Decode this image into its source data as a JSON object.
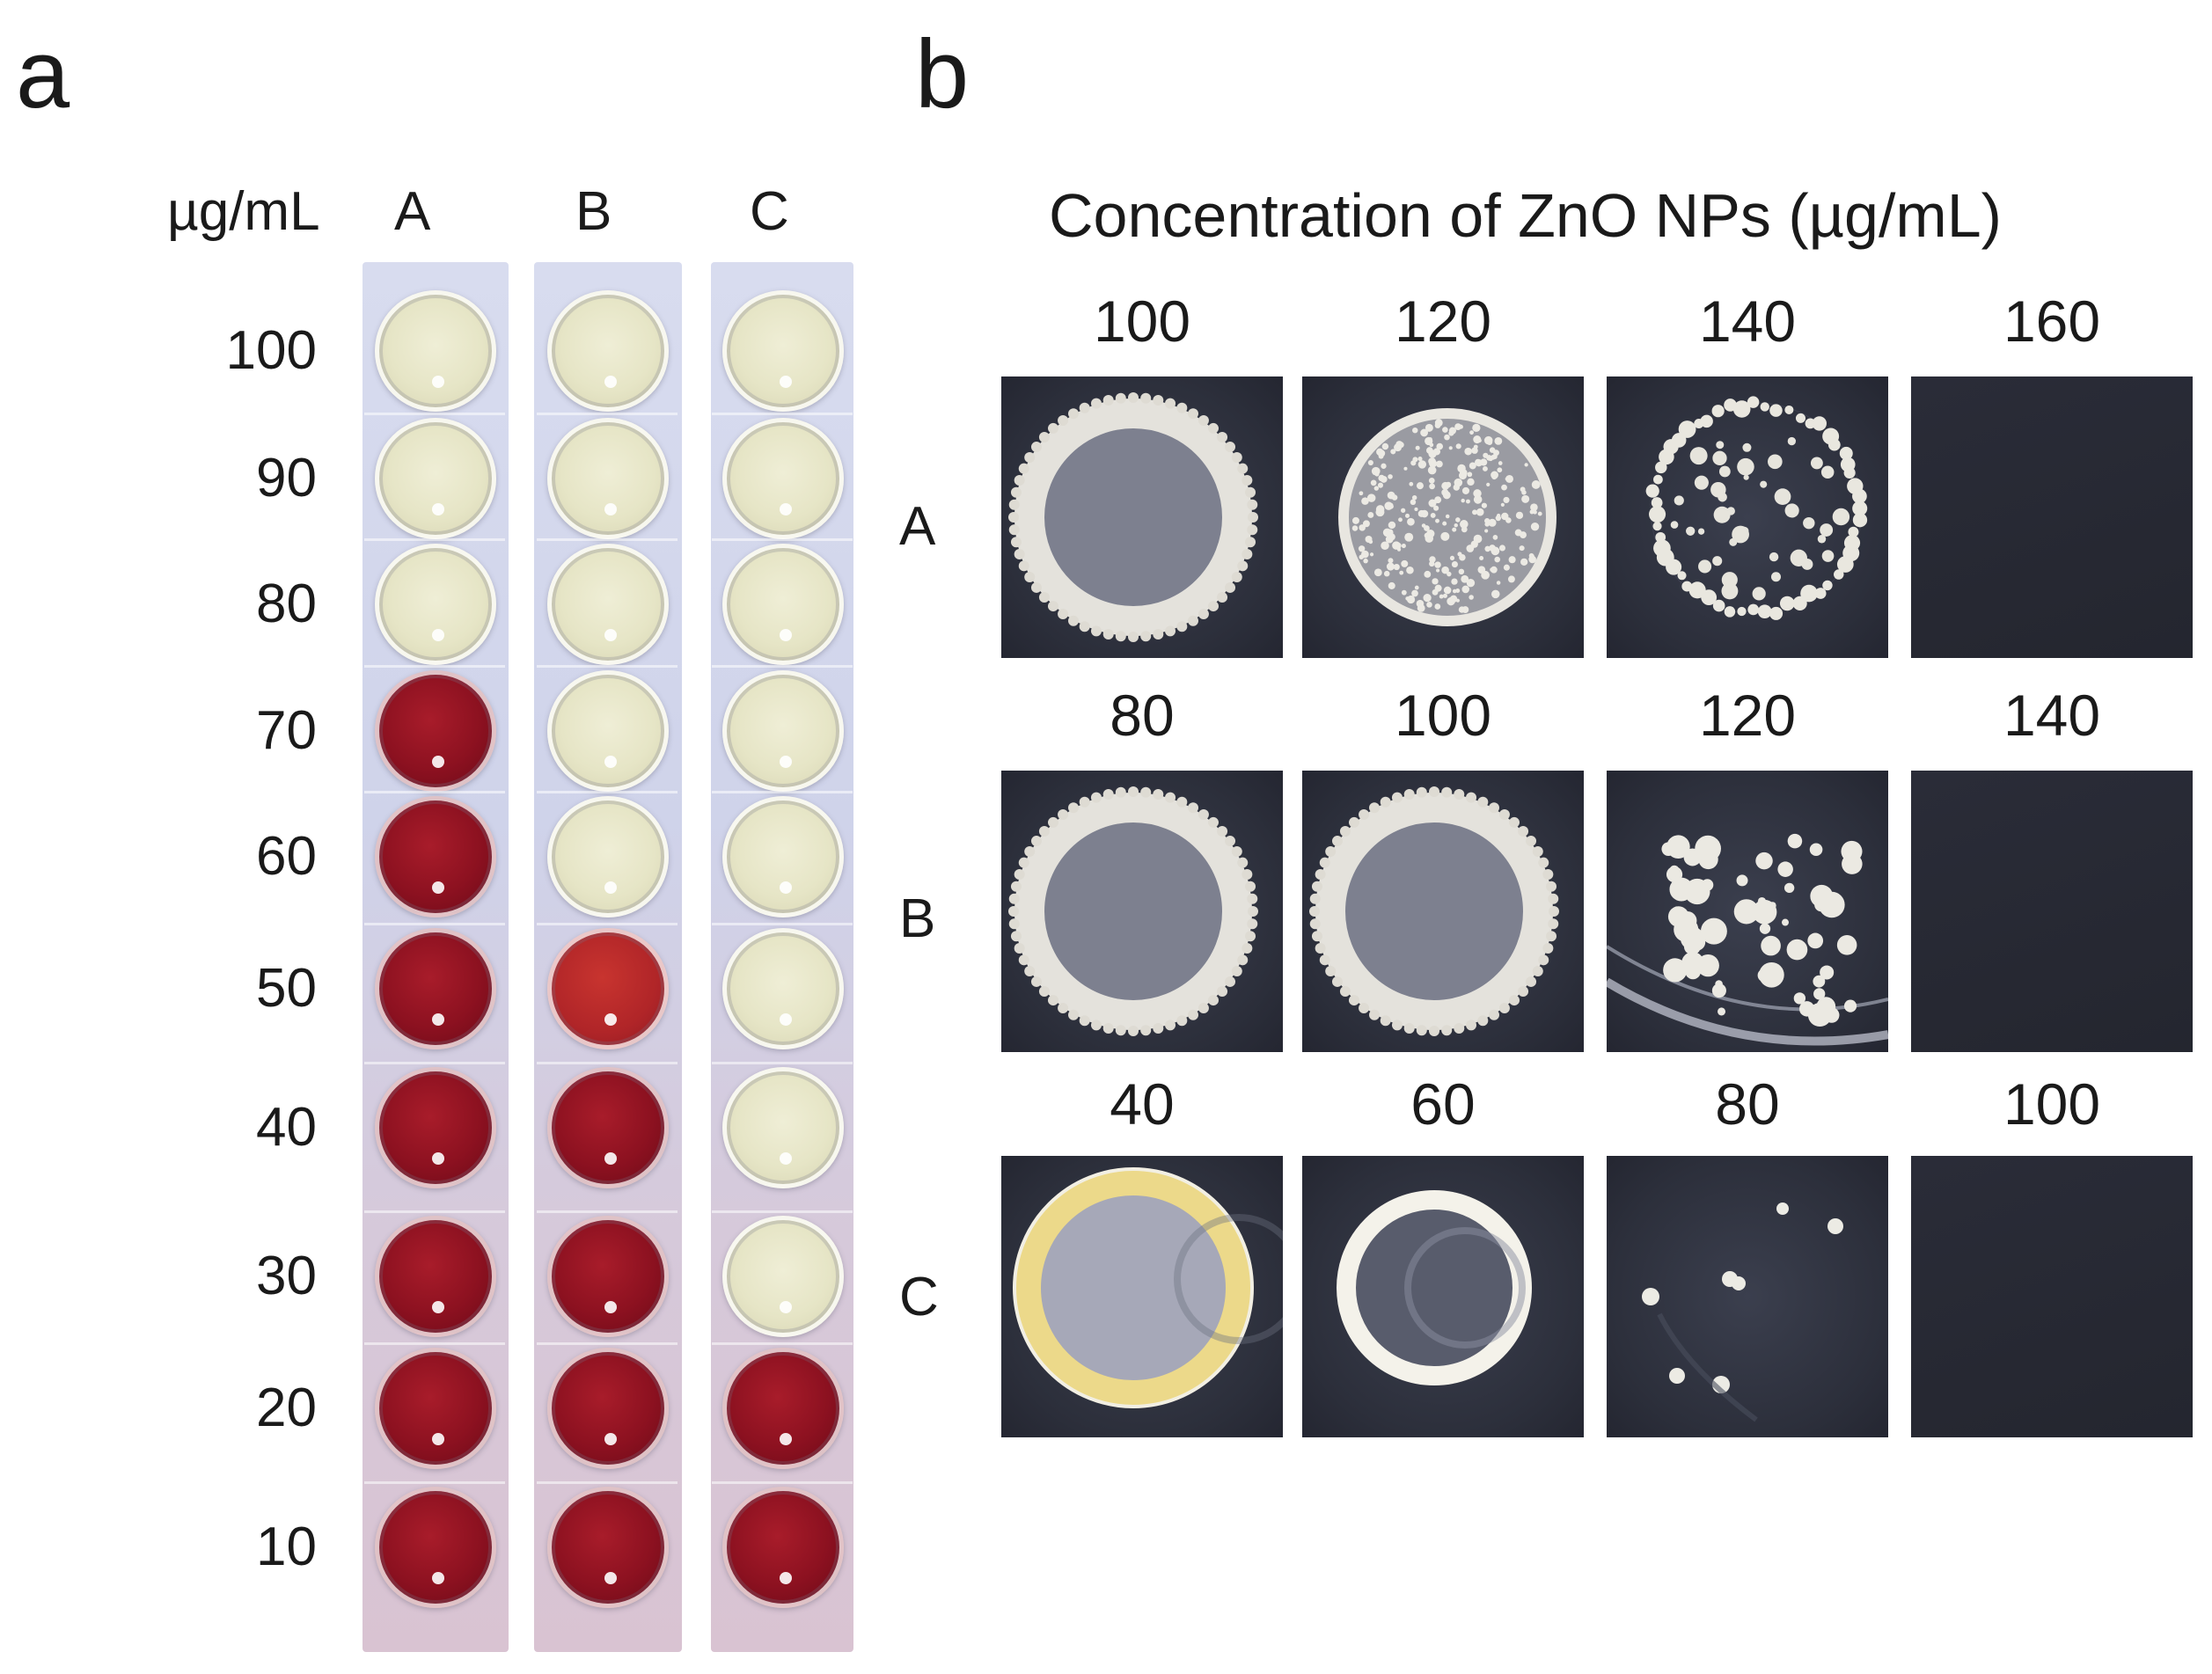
{
  "panel_a": {
    "letter": "a",
    "unit_label": "µg/mL",
    "columns": [
      "A",
      "B",
      "C"
    ],
    "rows": [
      "100",
      "90",
      "80",
      "70",
      "60",
      "50",
      "40",
      "30",
      "20",
      "10"
    ],
    "well_colors": {
      "A": [
        "clear",
        "clear",
        "clear",
        "red",
        "red",
        "red",
        "red",
        "red",
        "red",
        "red"
      ],
      "B": [
        "clear",
        "clear",
        "clear",
        "clear",
        "clear",
        "lightred",
        "red",
        "red",
        "red",
        "red"
      ],
      "C": [
        "clear",
        "clear",
        "clear",
        "clear",
        "clear",
        "clear",
        "clear",
        "clear",
        "red",
        "red"
      ]
    }
  },
  "panel_b": {
    "letter": "b",
    "title": "Concentration of ZnO NPs (µg/mL)",
    "rows": [
      {
        "label": "A",
        "concentrations": [
          "100",
          "120",
          "140",
          "160"
        ],
        "tiles": [
          "full-ring",
          "textured-disc",
          "scattered-colonies-disc",
          "empty"
        ]
      },
      {
        "label": "B",
        "concentrations": [
          "80",
          "100",
          "120",
          "140"
        ],
        "tiles": [
          "full-ring",
          "full-ring",
          "scattered-colonies-plate-edge",
          "empty"
        ]
      },
      {
        "label": "C",
        "concentrations": [
          "40",
          "60",
          "80",
          "100"
        ],
        "tiles": [
          "yellow-ring",
          "white-ring",
          "few-colonies",
          "empty"
        ]
      }
    ]
  },
  "colors": {
    "clear_well": "#e6e5c6",
    "red_well": "#8c1120",
    "agar_dark": "#2c2f3b",
    "colony": "#e8e6de"
  }
}
